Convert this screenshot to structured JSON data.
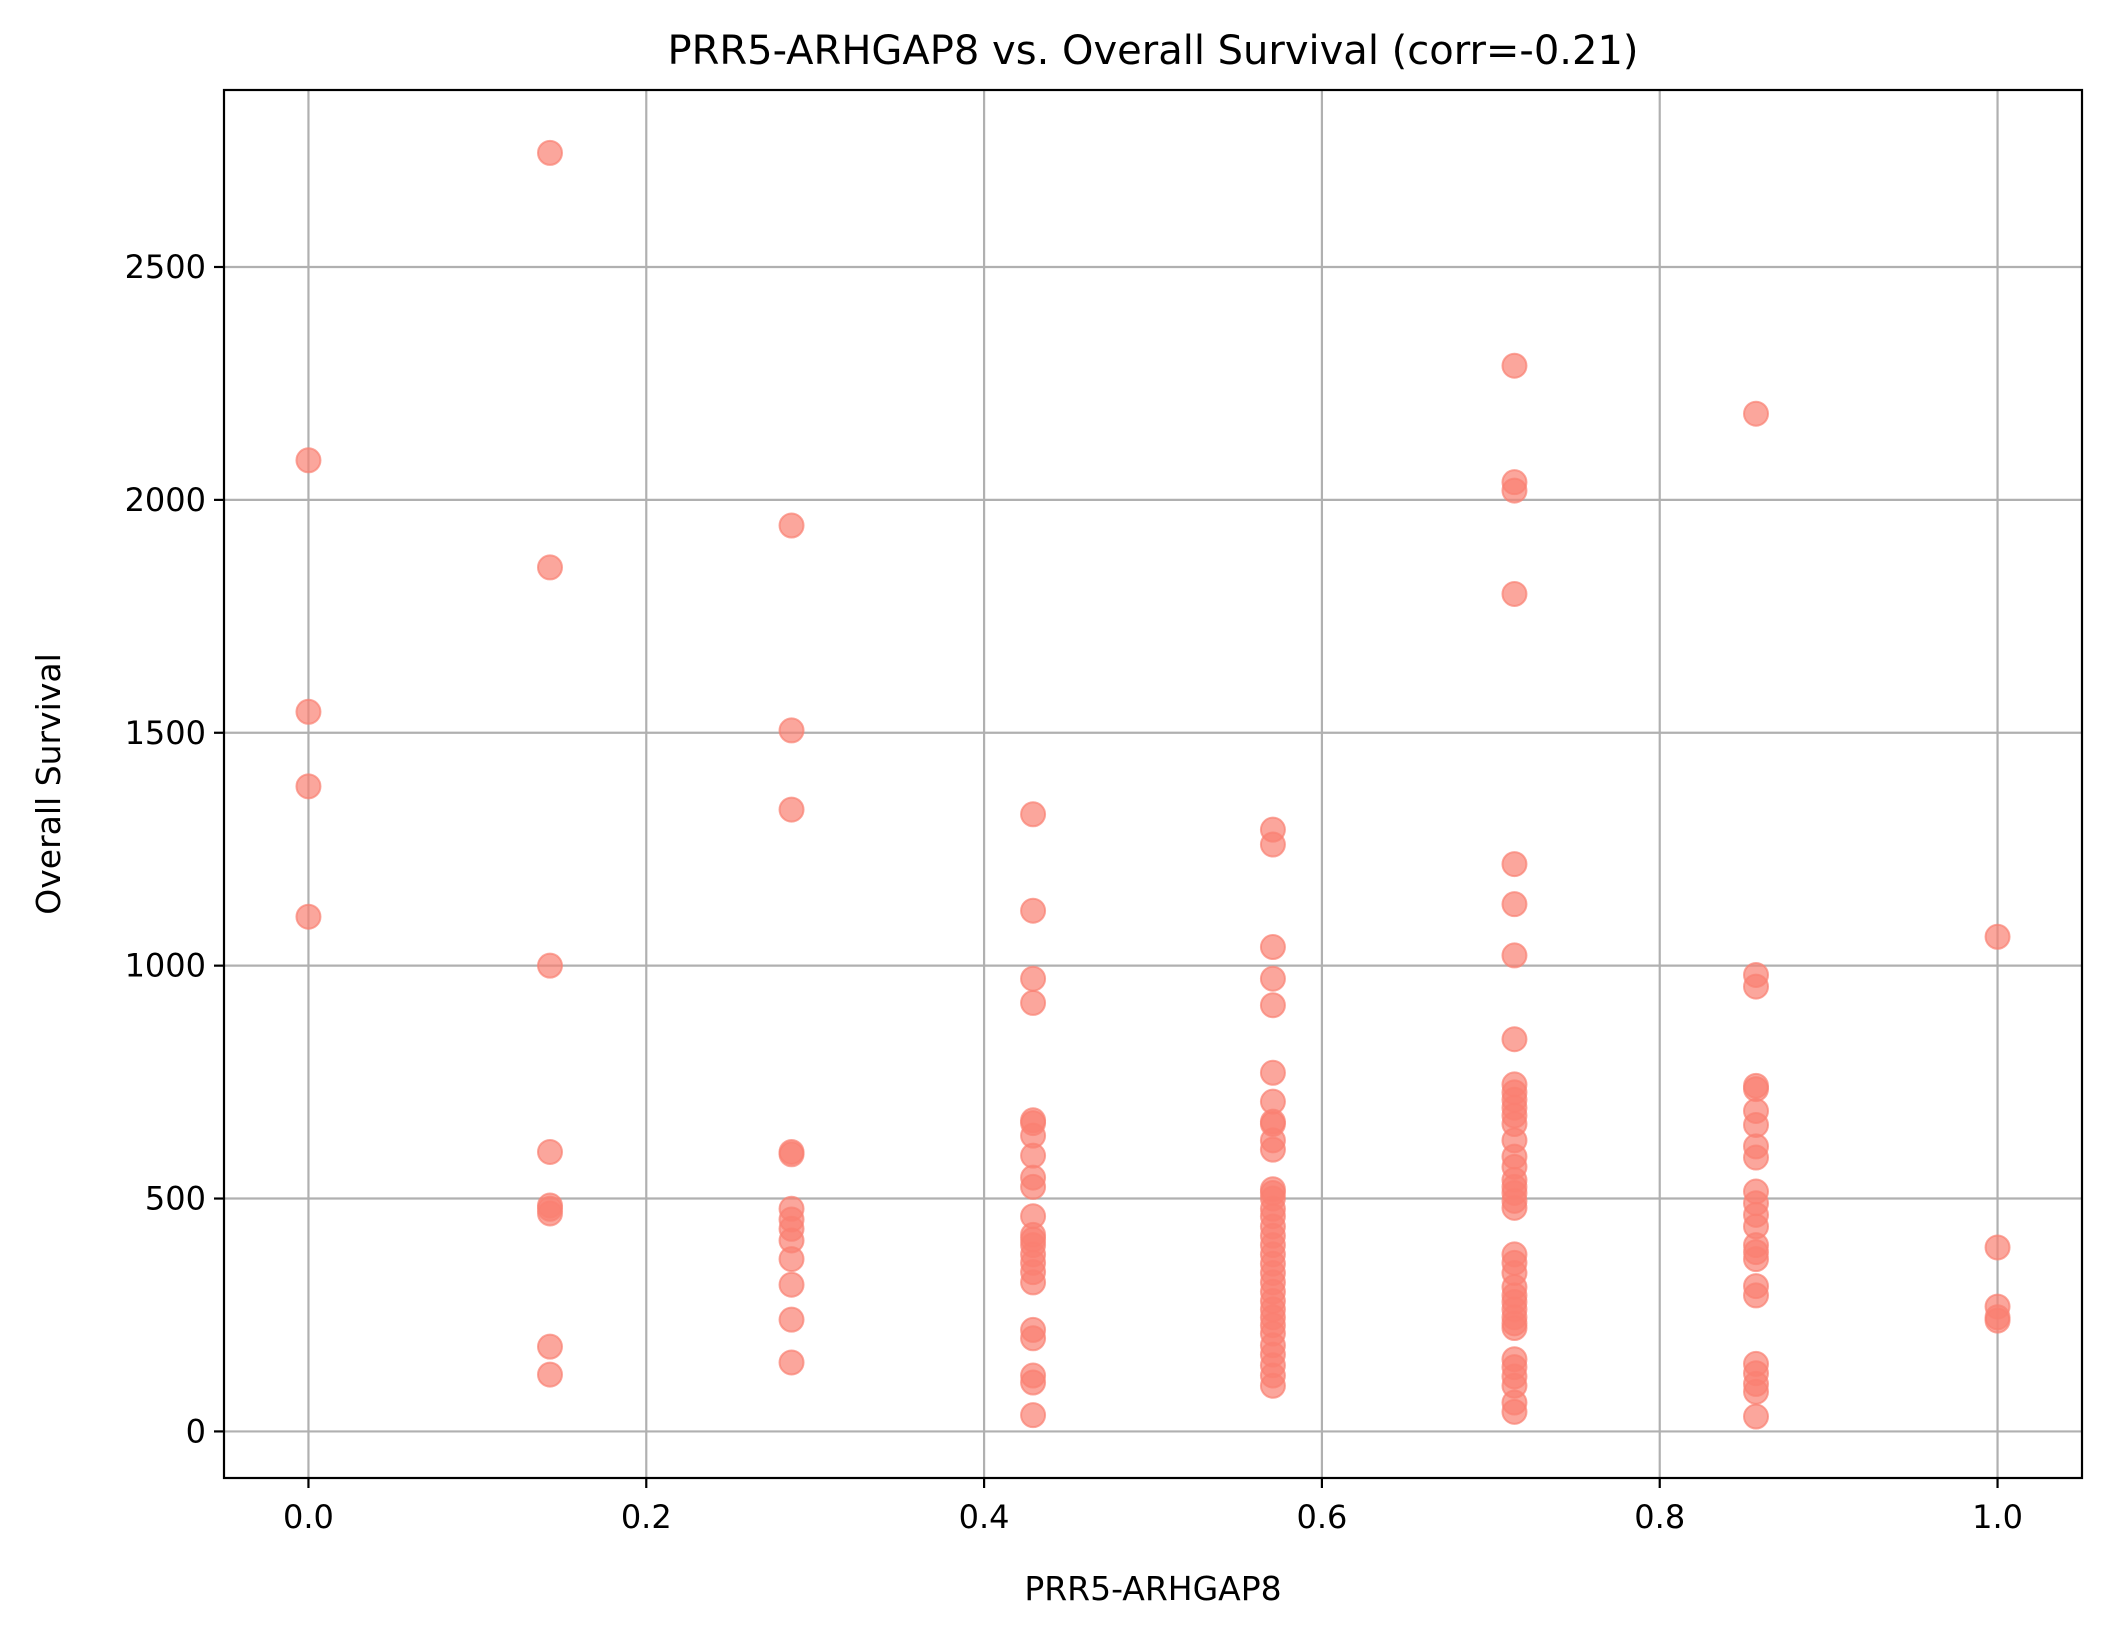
{
  "chart_data": {
    "type": "scatter",
    "title": "PRR5-ARHGAP8 vs. Overall Survival (corr=-0.21)",
    "xlabel": "PRR5-ARHGAP8",
    "ylabel": "Overall Survival",
    "xlim": [
      -0.05,
      1.05
    ],
    "ylim": [
      -100,
      2880
    ],
    "xticks": [
      0.0,
      0.2,
      0.4,
      0.6,
      0.8,
      1.0
    ],
    "xtick_labels": [
      "0.0",
      "0.2",
      "0.4",
      "0.6",
      "0.8",
      "1.0"
    ],
    "yticks": [
      0,
      500,
      1000,
      1500,
      2000,
      2500
    ],
    "ytick_labels": [
      "0",
      "500",
      "1000",
      "1500",
      "2000",
      "2500"
    ],
    "grid": true,
    "marker_color": "#fa8072",
    "marker_alpha": 0.7,
    "series": [
      {
        "points": [
          [
            0.0,
            2085
          ],
          [
            0.0,
            1545
          ],
          [
            0.0,
            1385
          ],
          [
            0.0,
            1105
          ],
          [
            0.143,
            2745
          ],
          [
            0.143,
            1855
          ],
          [
            0.143,
            1000
          ],
          [
            0.143,
            600
          ],
          [
            0.143,
            485
          ],
          [
            0.143,
            478
          ],
          [
            0.143,
            468
          ],
          [
            0.143,
            182
          ],
          [
            0.143,
            122
          ],
          [
            0.286,
            1945
          ],
          [
            0.286,
            1505
          ],
          [
            0.286,
            1335
          ],
          [
            0.286,
            600
          ],
          [
            0.286,
            595
          ],
          [
            0.286,
            478
          ],
          [
            0.286,
            455
          ],
          [
            0.286,
            435
          ],
          [
            0.286,
            410
          ],
          [
            0.286,
            370
          ],
          [
            0.286,
            315
          ],
          [
            0.286,
            240
          ],
          [
            0.286,
            148
          ],
          [
            0.429,
            1325
          ],
          [
            0.429,
            1118
          ],
          [
            0.429,
            972
          ],
          [
            0.429,
            920
          ],
          [
            0.429,
            668
          ],
          [
            0.429,
            662
          ],
          [
            0.429,
            635
          ],
          [
            0.429,
            592
          ],
          [
            0.429,
            545
          ],
          [
            0.429,
            525
          ],
          [
            0.429,
            462
          ],
          [
            0.429,
            422
          ],
          [
            0.429,
            412
          ],
          [
            0.429,
            400
          ],
          [
            0.429,
            380
          ],
          [
            0.429,
            362
          ],
          [
            0.429,
            342
          ],
          [
            0.429,
            320
          ],
          [
            0.429,
            218
          ],
          [
            0.429,
            200
          ],
          [
            0.429,
            120
          ],
          [
            0.429,
            105
          ],
          [
            0.429,
            35
          ],
          [
            0.571,
            1292
          ],
          [
            0.571,
            1260
          ],
          [
            0.571,
            1040
          ],
          [
            0.571,
            972
          ],
          [
            0.571,
            915
          ],
          [
            0.571,
            770
          ],
          [
            0.571,
            708
          ],
          [
            0.571,
            665
          ],
          [
            0.571,
            660
          ],
          [
            0.571,
            625
          ],
          [
            0.571,
            605
          ],
          [
            0.571,
            520
          ],
          [
            0.571,
            512
          ],
          [
            0.571,
            500
          ],
          [
            0.571,
            478
          ],
          [
            0.571,
            462
          ],
          [
            0.571,
            440
          ],
          [
            0.571,
            420
          ],
          [
            0.571,
            400
          ],
          [
            0.571,
            380
          ],
          [
            0.571,
            360
          ],
          [
            0.571,
            340
          ],
          [
            0.571,
            320
          ],
          [
            0.571,
            300
          ],
          [
            0.571,
            280
          ],
          [
            0.571,
            262
          ],
          [
            0.571,
            245
          ],
          [
            0.571,
            228
          ],
          [
            0.571,
            210
          ],
          [
            0.571,
            185
          ],
          [
            0.571,
            165
          ],
          [
            0.571,
            142
          ],
          [
            0.571,
            120
          ],
          [
            0.571,
            98
          ],
          [
            0.714,
            2288
          ],
          [
            0.714,
            2038
          ],
          [
            0.714,
            2020
          ],
          [
            0.714,
            1798
          ],
          [
            0.714,
            1218
          ],
          [
            0.714,
            1132
          ],
          [
            0.714,
            1022
          ],
          [
            0.714,
            842
          ],
          [
            0.714,
            745
          ],
          [
            0.714,
            728
          ],
          [
            0.714,
            712
          ],
          [
            0.714,
            695
          ],
          [
            0.714,
            678
          ],
          [
            0.714,
            660
          ],
          [
            0.714,
            625
          ],
          [
            0.714,
            590
          ],
          [
            0.714,
            568
          ],
          [
            0.714,
            540
          ],
          [
            0.714,
            525
          ],
          [
            0.714,
            512
          ],
          [
            0.714,
            495
          ],
          [
            0.714,
            480
          ],
          [
            0.714,
            380
          ],
          [
            0.714,
            362
          ],
          [
            0.714,
            340
          ],
          [
            0.714,
            310
          ],
          [
            0.714,
            292
          ],
          [
            0.714,
            278
          ],
          [
            0.714,
            262
          ],
          [
            0.714,
            245
          ],
          [
            0.714,
            232
          ],
          [
            0.714,
            222
          ],
          [
            0.714,
            155
          ],
          [
            0.714,
            138
          ],
          [
            0.714,
            118
          ],
          [
            0.714,
            98
          ],
          [
            0.714,
            62
          ],
          [
            0.714,
            42
          ],
          [
            0.857,
            2185
          ],
          [
            0.857,
            980
          ],
          [
            0.857,
            955
          ],
          [
            0.857,
            742
          ],
          [
            0.857,
            735
          ],
          [
            0.857,
            688
          ],
          [
            0.857,
            658
          ],
          [
            0.857,
            612
          ],
          [
            0.857,
            588
          ],
          [
            0.857,
            515
          ],
          [
            0.857,
            490
          ],
          [
            0.857,
            465
          ],
          [
            0.857,
            440
          ],
          [
            0.857,
            400
          ],
          [
            0.857,
            385
          ],
          [
            0.857,
            370
          ],
          [
            0.857,
            312
          ],
          [
            0.857,
            292
          ],
          [
            0.857,
            145
          ],
          [
            0.857,
            125
          ],
          [
            0.857,
            102
          ],
          [
            0.857,
            85
          ],
          [
            0.857,
            32
          ],
          [
            1.0,
            1062
          ],
          [
            1.0,
            395
          ],
          [
            1.0,
            268
          ],
          [
            1.0,
            245
          ],
          [
            1.0,
            238
          ]
        ]
      }
    ]
  }
}
